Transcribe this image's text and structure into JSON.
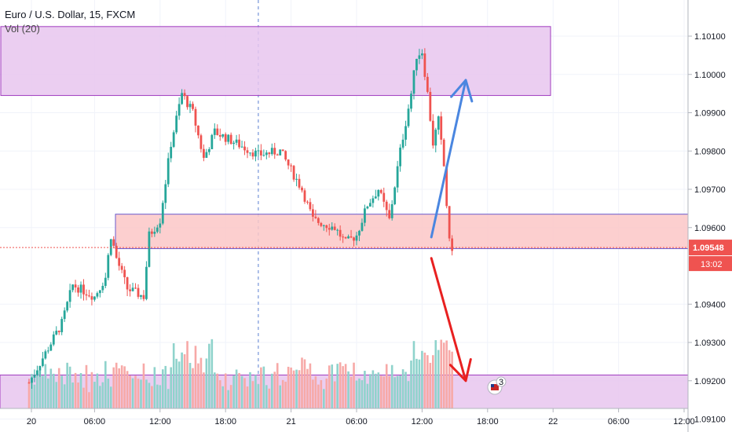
{
  "header": {
    "symbol": "Euro / U.S. Dollar, 15, FXCM",
    "volume_indicator": "Vol (20)"
  },
  "chart_data": {
    "type": "candlestick",
    "y_axis": {
      "ticks": [
        "1.10100",
        "1.10000",
        "1.09900",
        "1.09800",
        "1.09700",
        "1.09600",
        "1.09400",
        "1.09300",
        "1.09200",
        "1.09100"
      ],
      "range": [
        1.0908,
        1.1024
      ]
    },
    "x_axis": {
      "ticks": [
        "20",
        "06:00",
        "12:00",
        "18:00",
        "21",
        "06:00",
        "12:00",
        "18:00",
        "22",
        "06:00",
        "12:00"
      ]
    },
    "last_price": {
      "value": "1.09548",
      "countdown": "13:02",
      "color": "#ef5350"
    },
    "colors": {
      "up": "#26a69a",
      "down": "#ef5350",
      "vol_up": "#8fd3cc",
      "vol_down": "#f7a9a7"
    },
    "zones": [
      {
        "name": "upper-resistance-zone",
        "from": 1.09945,
        "to": 1.10125,
        "start_time": "08:00",
        "end_time": "22 00:00",
        "fill": "#e8c6ef",
        "stroke": "#a03cbf"
      },
      {
        "name": "mid-support-zone",
        "from": 1.09545,
        "to": 1.09635,
        "start_time": "07:45",
        "end_time": "open",
        "fill": "#fbc7c7",
        "stroke": "#6a5acd"
      },
      {
        "name": "lower-target-zone",
        "from": null,
        "to": 1.09215,
        "start_time": "start",
        "end_time": "open",
        "fill": "#e8c6ef",
        "stroke": "#a03cbf"
      }
    ],
    "arrows": [
      {
        "name": "bullish-arrow",
        "color": "#4a86e0",
        "from": {
          "time": "21 14:00",
          "price": 1.09575
        },
        "to": {
          "time": "21 16:00",
          "price": 1.09985
        }
      },
      {
        "name": "bearish-arrow",
        "color": "#e82020",
        "from": {
          "time": "21 14:00",
          "price": 1.0952
        },
        "to": {
          "time": "21 16:00",
          "price": 1.092
        }
      }
    ],
    "session_markers": [
      "20 21:00"
    ],
    "series": [
      {
        "name": "EURUSD 15m",
        "ohlc_keypoints": [
          {
            "t": "20 00:00",
            "p": 1.09195
          },
          {
            "t": "20 03:00",
            "p": 1.0935
          },
          {
            "t": "20 04:00",
            "p": 1.0945
          },
          {
            "t": "20 06:00",
            "p": 1.0942
          },
          {
            "t": "20 07:00",
            "p": 1.0947
          },
          {
            "t": "20 07:30",
            "p": 1.0958
          },
          {
            "t": "20 08:00",
            "p": 1.0952
          },
          {
            "t": "20 09:00",
            "p": 1.0944
          },
          {
            "t": "20 10:30",
            "p": 1.0942
          },
          {
            "t": "20 11:00",
            "p": 1.0958
          },
          {
            "t": "20 12:00",
            "p": 1.0962
          },
          {
            "t": "20 13:00",
            "p": 1.0982
          },
          {
            "t": "20 14:00",
            "p": 1.0995
          },
          {
            "t": "20 15:00",
            "p": 1.099
          },
          {
            "t": "20 16:00",
            "p": 1.0978
          },
          {
            "t": "20 17:00",
            "p": 1.0985
          },
          {
            "t": "20 19:00",
            "p": 1.0982
          },
          {
            "t": "20 21:00",
            "p": 1.0979
          },
          {
            "t": "20 23:00",
            "p": 1.098
          },
          {
            "t": "21 01:00",
            "p": 1.097
          },
          {
            "t": "21 02:00",
            "p": 1.0962
          },
          {
            "t": "21 04:00",
            "p": 1.096
          },
          {
            "t": "21 05:00",
            "p": 1.0956
          },
          {
            "t": "21 06:00",
            "p": 1.0958
          },
          {
            "t": "21 07:00",
            "p": 1.0966
          },
          {
            "t": "21 08:00",
            "p": 1.097
          },
          {
            "t": "21 09:00",
            "p": 1.0962
          },
          {
            "t": "21 10:00",
            "p": 1.098
          },
          {
            "t": "21 11:00",
            "p": 1.0995
          },
          {
            "t": "21 11:30",
            "p": 1.1005
          },
          {
            "t": "21 12:00",
            "p": 1.1006
          },
          {
            "t": "21 12:30",
            "p": 1.0995
          },
          {
            "t": "21 13:00",
            "p": 1.0982
          },
          {
            "t": "21 13:30",
            "p": 1.0988
          },
          {
            "t": "21 14:00",
            "p": 1.0976
          },
          {
            "t": "21 14:30",
            "p": 1.0956
          },
          {
            "t": "21 14:45",
            "p": 1.09548
          }
        ]
      }
    ]
  },
  "badges": {
    "event_count": "3"
  }
}
